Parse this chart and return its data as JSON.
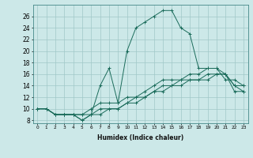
{
  "xlabel": "Humidex (Indice chaleur)",
  "bg_color": "#cce8e8",
  "grid_color": "#a0c8c8",
  "line_color": "#1a6b5a",
  "xlim": [
    -0.5,
    23.5
  ],
  "ylim": [
    7.5,
    28
  ],
  "xticks": [
    0,
    1,
    2,
    3,
    4,
    5,
    6,
    7,
    8,
    9,
    10,
    11,
    12,
    13,
    14,
    15,
    16,
    17,
    18,
    19,
    20,
    21,
    22,
    23
  ],
  "yticks": [
    8,
    10,
    12,
    14,
    16,
    18,
    20,
    22,
    24,
    26
  ],
  "series": [
    {
      "x": [
        0,
        1,
        2,
        3,
        4,
        5,
        6,
        7,
        8,
        9,
        10,
        11,
        12,
        13,
        14,
        15,
        16,
        17,
        18,
        19,
        20,
        21,
        22,
        23
      ],
      "y": [
        10,
        10,
        9,
        9,
        9,
        8,
        9,
        14,
        17,
        11,
        20,
        24,
        25,
        26,
        27,
        27,
        24,
        23,
        17,
        17,
        17,
        15,
        15,
        14
      ]
    },
    {
      "x": [
        0,
        1,
        2,
        3,
        4,
        5,
        6,
        7,
        8,
        9,
        10,
        11,
        12,
        13,
        14,
        15,
        16,
        17,
        18,
        19,
        20,
        21,
        22,
        23
      ],
      "y": [
        10,
        10,
        9,
        9,
        9,
        8,
        9,
        9,
        10,
        10,
        11,
        11,
        12,
        13,
        13,
        14,
        14,
        15,
        15,
        15,
        16,
        16,
        13,
        13
      ]
    },
    {
      "x": [
        0,
        1,
        2,
        3,
        4,
        5,
        6,
        7,
        8,
        9,
        10,
        11,
        12,
        13,
        14,
        15,
        16,
        17,
        18,
        19,
        20,
        21,
        22,
        23
      ],
      "y": [
        10,
        10,
        9,
        9,
        9,
        9,
        9,
        10,
        10,
        10,
        11,
        12,
        12,
        13,
        14,
        14,
        15,
        15,
        15,
        16,
        16,
        16,
        14,
        13
      ]
    },
    {
      "x": [
        0,
        1,
        2,
        3,
        4,
        5,
        6,
        7,
        8,
        9,
        10,
        11,
        12,
        13,
        14,
        15,
        16,
        17,
        18,
        19,
        20,
        21,
        22,
        23
      ],
      "y": [
        10,
        10,
        9,
        9,
        9,
        9,
        10,
        11,
        11,
        11,
        12,
        12,
        13,
        14,
        15,
        15,
        15,
        16,
        16,
        17,
        17,
        16,
        14,
        14
      ]
    }
  ]
}
